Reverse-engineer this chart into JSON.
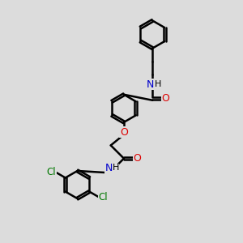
{
  "bg_color": "#dcdcdc",
  "bond_color": "#000000",
  "bond_width": 1.8,
  "figsize": [
    3.0,
    3.0
  ],
  "dpi": 100,
  "O_color": "#dd0000",
  "N_color": "#0000cc",
  "Cl_color": "#007700",
  "font_size": 8.5,
  "double_sep": 0.09,
  "ring_r": 0.58,
  "xlim": [
    0,
    10
  ],
  "ylim": [
    0,
    10
  ]
}
